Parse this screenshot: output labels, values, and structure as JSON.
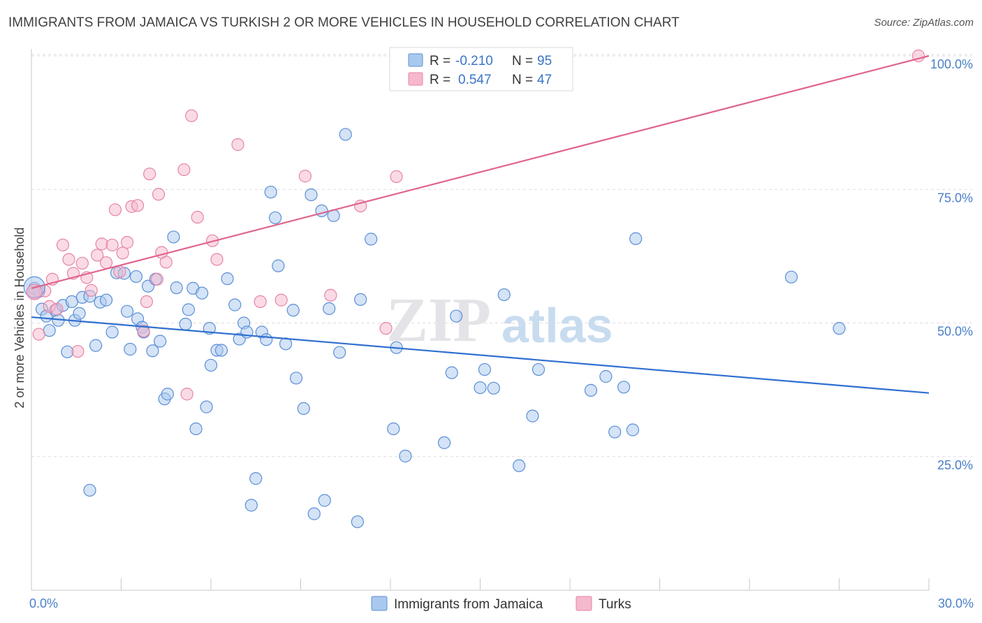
{
  "header": {
    "title": "IMMIGRANTS FROM JAMAICA VS TURKISH 2 OR MORE VEHICLES IN HOUSEHOLD CORRELATION CHART",
    "source": "Source: ZipAtlas.com"
  },
  "watermark": {
    "zip": "ZIP",
    "atlas": "atlas"
  },
  "colors": {
    "blue_fill": "#a9c8ee",
    "blue_stroke": "#5b8fd6",
    "blue_line": "#2f6fd0",
    "pink_fill": "#f6b8cc",
    "pink_stroke": "#e784a6",
    "pink_line": "#e0648c",
    "grid": "#dddddd",
    "tick_label": "#4a7fc9"
  },
  "legend_top": {
    "rows": [
      {
        "r_label": "R =",
        "r_value": "-0.210",
        "n_label": "N =",
        "n_value": "95",
        "series": "blue"
      },
      {
        "r_label": "R =",
        "r_value": "0.547",
        "n_label": "N =",
        "n_value": "47",
        "series": "pink"
      }
    ]
  },
  "legend_bottom": {
    "items": [
      {
        "label": "Immigrants from Jamaica",
        "series": "blue"
      },
      {
        "label": "Turks",
        "series": "pink"
      }
    ]
  },
  "chart_data": {
    "type": "scatter",
    "title": "IMMIGRANTS FROM JAMAICA VS TURKISH 2 OR MORE VEHICLES IN HOUSEHOLD CORRELATION CHART",
    "xlabel": "",
    "ylabel": "2 or more Vehicles in Household",
    "xlim": [
      0,
      30
    ],
    "ylim": [
      0,
      103
    ],
    "x_tick_labels": [
      {
        "value": 0,
        "label": "0.0%"
      },
      {
        "value": 30,
        "label": "30.0%"
      }
    ],
    "x_minor_ticks": [
      3,
      6,
      9,
      12,
      15,
      18,
      21,
      24,
      27
    ],
    "y_ticks": [
      {
        "value": 25,
        "label": "25.0%"
      },
      {
        "value": 50,
        "label": "50.0%"
      },
      {
        "value": 75,
        "label": "75.0%"
      },
      {
        "value": 100,
        "label": "100.0%"
      }
    ],
    "grid": true,
    "legend_position": "top-center",
    "series": [
      {
        "name": "Immigrants from Jamaica",
        "color": "blue",
        "trend": {
          "x": [
            0,
            30
          ],
          "y": [
            51.1,
            36.9
          ]
        },
        "points": [
          [
            0.1,
            56.5
          ],
          [
            0.25,
            55.9
          ],
          [
            0.35,
            52.6
          ],
          [
            0.5,
            51.3
          ],
          [
            0.6,
            48.6
          ],
          [
            0.8,
            52.4
          ],
          [
            0.9,
            50.5
          ],
          [
            1.05,
            53.3
          ],
          [
            1.2,
            44.6
          ],
          [
            1.35,
            54.0
          ],
          [
            1.45,
            50.5
          ],
          [
            1.6,
            51.8
          ],
          [
            1.7,
            54.8
          ],
          [
            1.95,
            18.7
          ],
          [
            1.95,
            55.0
          ],
          [
            2.15,
            45.8
          ],
          [
            2.3,
            53.9
          ],
          [
            2.5,
            54.3
          ],
          [
            2.7,
            48.3
          ],
          [
            2.85,
            59.4
          ],
          [
            3.1,
            59.3
          ],
          [
            3.2,
            52.2
          ],
          [
            3.3,
            45.1
          ],
          [
            3.5,
            58.7
          ],
          [
            3.55,
            50.8
          ],
          [
            3.7,
            49.2
          ],
          [
            3.75,
            48.3
          ],
          [
            3.9,
            56.9
          ],
          [
            4.05,
            44.8
          ],
          [
            4.15,
            58.2
          ],
          [
            4.3,
            46.6
          ],
          [
            4.45,
            35.8
          ],
          [
            4.55,
            36.7
          ],
          [
            4.75,
            66.1
          ],
          [
            4.85,
            56.6
          ],
          [
            5.15,
            49.8
          ],
          [
            5.25,
            52.5
          ],
          [
            5.4,
            56.5
          ],
          [
            5.5,
            30.2
          ],
          [
            5.7,
            55.6
          ],
          [
            5.85,
            34.3
          ],
          [
            5.95,
            49.0
          ],
          [
            6.0,
            42.1
          ],
          [
            6.2,
            44.9
          ],
          [
            6.35,
            44.9
          ],
          [
            6.55,
            58.3
          ],
          [
            6.8,
            53.4
          ],
          [
            6.95,
            47.0
          ],
          [
            7.1,
            50.0
          ],
          [
            7.2,
            48.3
          ],
          [
            7.35,
            15.9
          ],
          [
            7.5,
            20.9
          ],
          [
            7.7,
            48.3
          ],
          [
            7.85,
            46.9
          ],
          [
            8.0,
            74.5
          ],
          [
            8.15,
            69.7
          ],
          [
            8.25,
            60.7
          ],
          [
            8.5,
            46.1
          ],
          [
            8.75,
            52.4
          ],
          [
            8.85,
            39.7
          ],
          [
            9.1,
            34.0
          ],
          [
            9.35,
            74.0
          ],
          [
            9.45,
            14.3
          ],
          [
            9.7,
            71.0
          ],
          [
            9.8,
            16.8
          ],
          [
            9.95,
            52.7
          ],
          [
            10.1,
            70.1
          ],
          [
            10.3,
            44.5
          ],
          [
            10.5,
            85.3
          ],
          [
            10.9,
            12.8
          ],
          [
            11.0,
            54.4
          ],
          [
            11.35,
            65.7
          ],
          [
            12.1,
            30.2
          ],
          [
            12.2,
            45.4
          ],
          [
            12.5,
            25.1
          ],
          [
            13.8,
            27.6
          ],
          [
            14.05,
            40.7
          ],
          [
            14.2,
            51.3
          ],
          [
            15.0,
            37.9
          ],
          [
            15.15,
            41.3
          ],
          [
            15.45,
            37.8
          ],
          [
            15.8,
            55.3
          ],
          [
            16.3,
            23.3
          ],
          [
            16.75,
            32.6
          ],
          [
            16.95,
            41.3
          ],
          [
            18.7,
            37.4
          ],
          [
            19.2,
            40.0
          ],
          [
            19.5,
            29.6
          ],
          [
            19.8,
            38.0
          ],
          [
            20.1,
            30.0
          ],
          [
            20.2,
            65.8
          ],
          [
            25.4,
            58.6
          ],
          [
            27.0,
            49.0
          ]
        ]
      },
      {
        "name": "Turks",
        "color": "pink",
        "trend": {
          "x": [
            0,
            30
          ],
          "y": [
            56.5,
            100.0
          ]
        },
        "points": [
          [
            0.1,
            55.7
          ],
          [
            0.25,
            47.9
          ],
          [
            0.45,
            56.0
          ],
          [
            0.6,
            53.1
          ],
          [
            0.7,
            58.2
          ],
          [
            0.85,
            52.6
          ],
          [
            1.05,
            64.6
          ],
          [
            1.25,
            61.9
          ],
          [
            1.4,
            59.3
          ],
          [
            1.55,
            44.7
          ],
          [
            1.7,
            61.2
          ],
          [
            1.85,
            58.5
          ],
          [
            2.0,
            56.1
          ],
          [
            2.2,
            62.7
          ],
          [
            2.35,
            64.8
          ],
          [
            2.5,
            61.3
          ],
          [
            2.7,
            64.6
          ],
          [
            2.8,
            71.2
          ],
          [
            2.95,
            59.6
          ],
          [
            3.05,
            63.1
          ],
          [
            3.2,
            65.1
          ],
          [
            3.35,
            71.8
          ],
          [
            3.55,
            72.0
          ],
          [
            3.75,
            48.5
          ],
          [
            3.85,
            54.0
          ],
          [
            3.95,
            77.9
          ],
          [
            4.2,
            58.2
          ],
          [
            4.25,
            74.1
          ],
          [
            4.35,
            63.2
          ],
          [
            4.5,
            61.4
          ],
          [
            5.1,
            78.7
          ],
          [
            5.2,
            36.7
          ],
          [
            5.35,
            88.8
          ],
          [
            5.55,
            69.8
          ],
          [
            6.05,
            65.4
          ],
          [
            6.2,
            61.9
          ],
          [
            6.9,
            83.4
          ],
          [
            7.65,
            54.0
          ],
          [
            8.35,
            54.3
          ],
          [
            9.15,
            77.5
          ],
          [
            10.0,
            55.2
          ],
          [
            11.0,
            71.9
          ],
          [
            11.85,
            49.0
          ],
          [
            12.2,
            77.4
          ],
          [
            12.3,
            100.0
          ],
          [
            29.65,
            100.0
          ]
        ]
      }
    ]
  }
}
